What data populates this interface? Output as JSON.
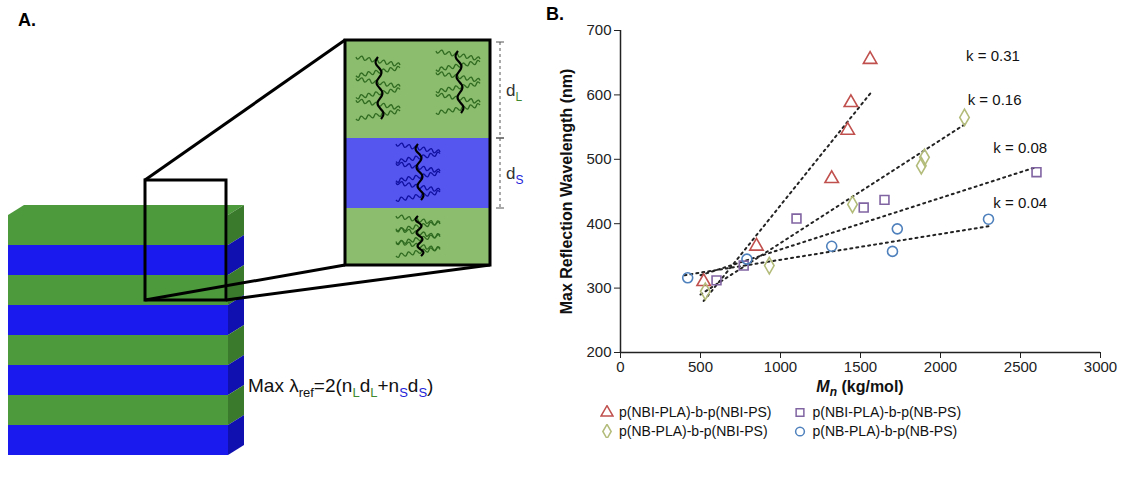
{
  "chart_data": {
    "type": "scatter",
    "panel_label": "B.",
    "xlabel": "Mn (kg/mol)",
    "ylabel": "Max Reflection Wavelength (nm)",
    "xlim": [
      0,
      3000
    ],
    "xticks": [
      0,
      500,
      1000,
      1500,
      2000,
      2500,
      3000
    ],
    "ylim": [
      200,
      700
    ],
    "yticks": [
      200,
      300,
      400,
      500,
      600,
      700
    ],
    "grid": false,
    "legend": "bottom",
    "series": [
      {
        "name": "p(NBI-PLA)-b-p(NBI-PS)",
        "color": "#c0504d",
        "marker": "triangle",
        "x": [
          520,
          850,
          1320,
          1420,
          1440,
          1560
        ],
        "values": [
          310,
          365,
          470,
          545,
          588,
          655
        ]
      },
      {
        "name": "p(NBI-PLA)-b-p(NB-PS)",
        "color": "#8064a2",
        "marker": "square",
        "x": [
          600,
          770,
          1100,
          1520,
          1650,
          2600
        ],
        "values": [
          312,
          335,
          408,
          425,
          437,
          480
        ]
      },
      {
        "name": "p(NB-PLA)-b-p(NBI-PS)",
        "color": "#b3bc7a",
        "marker": "diamond",
        "x": [
          530,
          930,
          1450,
          1880,
          1900,
          2150
        ],
        "values": [
          295,
          335,
          430,
          490,
          503,
          565
        ]
      },
      {
        "name": "p(NB-PLA)-b-p(NB-PS)",
        "color": "#4f81bd",
        "marker": "circle",
        "x": [
          420,
          790,
          1320,
          1700,
          1730,
          2300
        ],
        "values": [
          316,
          345,
          365,
          357,
          392,
          407
        ]
      }
    ],
    "trendlines": [
      {
        "label": "k = 0.31",
        "x": [
          520,
          1570
        ],
        "values": [
          280,
          605
        ],
        "label_x": 2160,
        "label_y": 660,
        "line_style": "dotted"
      },
      {
        "label": "k = 0.16",
        "x": [
          500,
          2150
        ],
        "values": [
          290,
          554
        ],
        "label_x": 2170,
        "label_y": 592,
        "line_style": "dotted"
      },
      {
        "label": "k = 0.08",
        "x": [
          500,
          2600
        ],
        "values": [
          320,
          488
        ],
        "label_x": 2330,
        "label_y": 518,
        "line_style": "dotted"
      },
      {
        "label": "k = 0.04",
        "x": [
          400,
          2300
        ],
        "values": [
          320,
          396
        ],
        "label_x": 2330,
        "label_y": 432,
        "line_style": "dotted"
      }
    ]
  },
  "diagram": {
    "panel_label": "A.",
    "layer_labels": [
      {
        "text": "d",
        "sub": "L",
        "color": "#3f8a2e"
      },
      {
        "text": "d",
        "sub": "S",
        "color": "#2323d8"
      }
    ],
    "formula": [
      {
        "text": "Max λ"
      },
      {
        "text": "ref",
        "sub": true
      },
      {
        "text": "=2(n"
      },
      {
        "text": "L",
        "sub": true,
        "color": "#3f8a2e"
      },
      {
        "text": "d"
      },
      {
        "text": "L",
        "sub": true,
        "color": "#3f8a2e"
      },
      {
        "text": "+n"
      },
      {
        "text": "S",
        "sub": true,
        "color": "#2323d8"
      },
      {
        "text": "d"
      },
      {
        "text": "S",
        "sub": true,
        "color": "#2323d8"
      },
      {
        "text": ")"
      }
    ]
  }
}
